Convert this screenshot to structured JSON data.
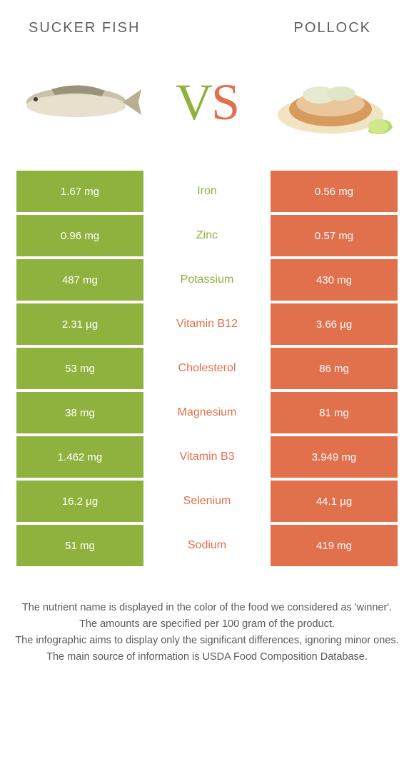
{
  "colors": {
    "left": "#8fb23f",
    "right": "#e1704d",
    "mid_bg": "#ffffff"
  },
  "header": {
    "left_title": "Sucker fish",
    "right_title": "Pollock"
  },
  "hero": {
    "vs_text": "VS",
    "vs_left_color": "#8fb23f",
    "vs_right_color": "#e1704d"
  },
  "rows": [
    {
      "left": "1.67 mg",
      "mid": "Iron",
      "right": "0.56 mg",
      "winner": "left"
    },
    {
      "left": "0.96 mg",
      "mid": "Zinc",
      "right": "0.57 mg",
      "winner": "left"
    },
    {
      "left": "487 mg",
      "mid": "Potassium",
      "right": "430 mg",
      "winner": "left"
    },
    {
      "left": "2.31 µg",
      "mid": "Vitamin B12",
      "right": "3.66 µg",
      "winner": "right"
    },
    {
      "left": "53 mg",
      "mid": "Cholesterol",
      "right": "86 mg",
      "winner": "right"
    },
    {
      "left": "38 mg",
      "mid": "Magnesium",
      "right": "81 mg",
      "winner": "right"
    },
    {
      "left": "1.462 mg",
      "mid": "Vitamin B3",
      "right": "3.949 mg",
      "winner": "right"
    },
    {
      "left": "16.2 µg",
      "mid": "Selenium",
      "right": "44.1 µg",
      "winner": "right"
    },
    {
      "left": "51 mg",
      "mid": "Sodium",
      "right": "419 mg",
      "winner": "right"
    }
  ],
  "footer": {
    "line1": "The nutrient name is displayed in the color of the food we considered as 'winner'.",
    "line2": "The amounts are specified per 100 gram of the product.",
    "line3": "The infographic aims to display only the significant differences, ignoring minor ones.",
    "line4": "The main source of information is USDA Food Composition Database."
  }
}
